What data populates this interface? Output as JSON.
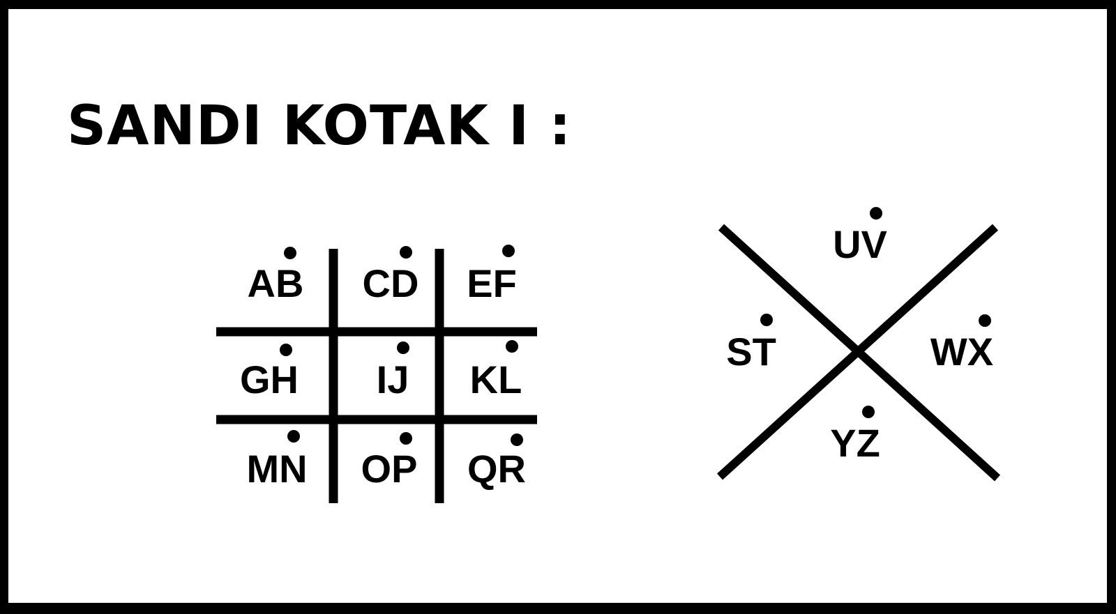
{
  "title": "SANDI KOTAK I :",
  "colors": {
    "ink": "#000000",
    "background": "#ffffff",
    "frame": "#000000"
  },
  "grid_cipher": {
    "cells": [
      {
        "label": "AB",
        "dot_letter": "B"
      },
      {
        "label": "CD",
        "dot_letter": "D"
      },
      {
        "label": "EF",
        "dot_letter": "F"
      },
      {
        "label": "GH",
        "dot_letter": "H"
      },
      {
        "label": "IJ",
        "dot_letter": "J"
      },
      {
        "label": "KL",
        "dot_letter": "L"
      },
      {
        "label": "MN",
        "dot_letter": "N"
      },
      {
        "label": "OP",
        "dot_letter": "P"
      },
      {
        "label": "QR",
        "dot_letter": "R"
      }
    ]
  },
  "x_cipher": {
    "cells": [
      {
        "position": "top",
        "label": "UV",
        "dot_letter": "V"
      },
      {
        "position": "left",
        "label": "ST",
        "dot_letter": "T"
      },
      {
        "position": "right",
        "label": "WX",
        "dot_letter": "X"
      },
      {
        "position": "bottom",
        "label": "YZ",
        "dot_letter": "Z"
      }
    ]
  }
}
